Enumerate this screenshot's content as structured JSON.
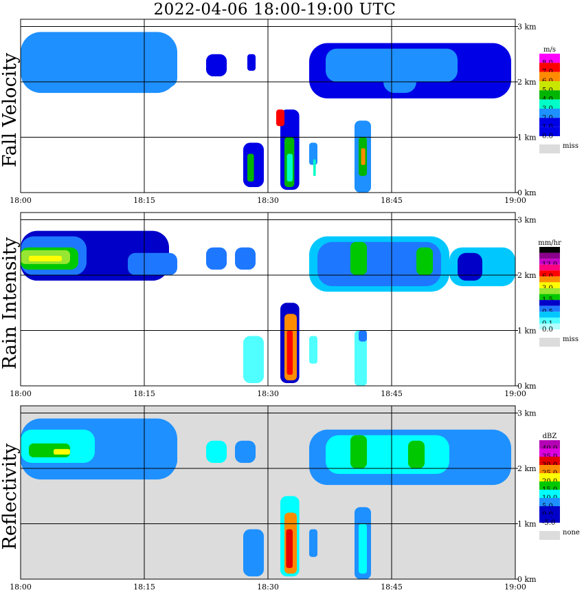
{
  "title": "2022-04-06  18:00-19:00 UTC",
  "time_labels": [
    "18:00",
    "18:15",
    "18:30",
    "18:45",
    "19:00"
  ],
  "height_labels": [
    "0 km",
    "1 km",
    "2 km",
    "3 km"
  ],
  "panels": [
    {
      "label": "Fall Velocity",
      "unit": "m/s",
      "missing_label": "miss",
      "background": "#ffffff",
      "scale": [
        {
          "label": "8.0",
          "color": "#ff00ff"
        },
        {
          "label": "7.0",
          "color": "#ff0000"
        },
        {
          "label": "6.0",
          "color": "#ff8c00"
        },
        {
          "label": "5.0",
          "color": "#c8e600"
        },
        {
          "label": "4.0",
          "color": "#00b400"
        },
        {
          "label": "3.0",
          "color": "#00ffc8"
        },
        {
          "label": "2.0",
          "color": "#1e90ff"
        },
        {
          "label": "1.0",
          "color": "#0000e6"
        },
        {
          "label": "0.0",
          "color": "#0000e6"
        }
      ],
      "missing_color": "#dcdcdc"
    },
    {
      "label": "Rain Intensity",
      "unit": "mm/hr",
      "missing_label": "miss",
      "background": "#ffffff",
      "scale": [
        {
          "label": "48.0",
          "color": "#000000"
        },
        {
          "label": "",
          "color": "#8b008b"
        },
        {
          "label": "12.0",
          "color": "#c800c8"
        },
        {
          "label": "",
          "color": "#ff0080"
        },
        {
          "label": "6.0",
          "color": "#ff0000"
        },
        {
          "label": "",
          "color": "#ff8c00"
        },
        {
          "label": "3.0",
          "color": "#ffff00"
        },
        {
          "label": "",
          "color": "#96e632"
        },
        {
          "label": "1.5",
          "color": "#00c800"
        },
        {
          "label": "",
          "color": "#0000c8"
        },
        {
          "label": "0.5",
          "color": "#1e78ff"
        },
        {
          "label": "",
          "color": "#00c8ff"
        },
        {
          "label": "0.1",
          "color": "#50ffff"
        },
        {
          "label": "0.0",
          "color": "#b4ffff"
        }
      ],
      "missing_color": "#dcdcdc"
    },
    {
      "label": "Reflectivity",
      "unit": "dBZ",
      "missing_label": "none",
      "background": "#dcdcdc",
      "scale": [
        {
          "label": "40.0",
          "color": "#b400b4"
        },
        {
          "label": "35.0",
          "color": "#dc00dc"
        },
        {
          "label": "30.0",
          "color": "#e60000"
        },
        {
          "label": "25.0",
          "color": "#ff8c00"
        },
        {
          "label": "20.0",
          "color": "#ffff00"
        },
        {
          "label": "15.0",
          "color": "#00c800"
        },
        {
          "label": "10.0",
          "color": "#00ffff"
        },
        {
          "label": "5.0",
          "color": "#1e90ff"
        },
        {
          "label": "0.0",
          "color": "#0000c8"
        },
        {
          "label": "-5.0",
          "color": "#0000c8"
        }
      ],
      "missing_color": "#dcdcdc"
    }
  ],
  "chart_data": [
    {
      "type": "heatmap",
      "title": "Fall Velocity",
      "x_range": [
        "18:00",
        "19:00"
      ],
      "y_range_km": [
        0,
        3.0
      ],
      "colorbar_unit": "m/s"
    },
    {
      "type": "heatmap",
      "title": "Rain Intensity",
      "x_range": [
        "18:00",
        "19:00"
      ],
      "y_range_km": [
        0,
        3.0
      ],
      "colorbar_unit": "mm/hr"
    },
    {
      "type": "heatmap",
      "title": "Reflectivity",
      "x_range": [
        "18:00",
        "19:00"
      ],
      "y_range_km": [
        0,
        3.0
      ],
      "colorbar_unit": "dBZ"
    }
  ]
}
